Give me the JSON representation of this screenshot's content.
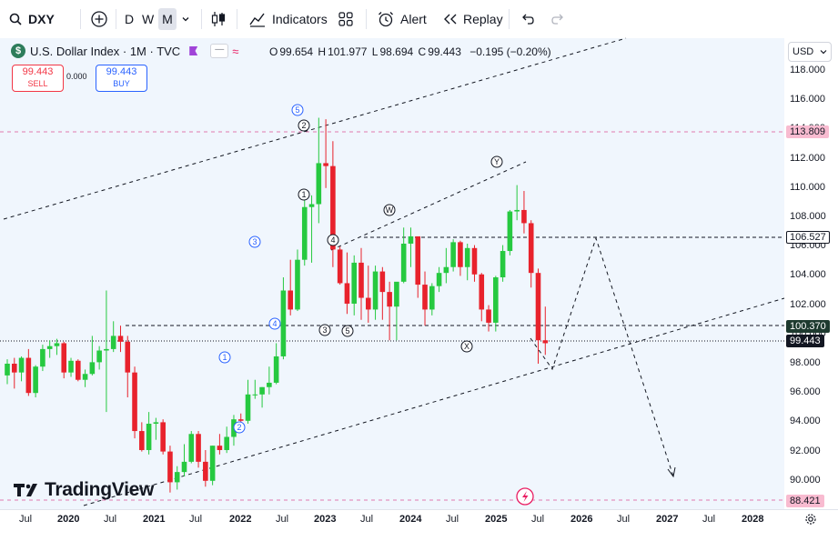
{
  "toolbar": {
    "symbol": "DXY",
    "intervals": [
      "D",
      "W",
      "M"
    ],
    "active_interval": "M",
    "indicators_label": "Indicators",
    "alert_label": "Alert",
    "replay_label": "Replay"
  },
  "legend": {
    "title": "U.S. Dollar Index · 1M · TVC",
    "open_label": "O",
    "open": "99.654",
    "high_label": "H",
    "high": "101.977",
    "low_label": "L",
    "low": "98.694",
    "close_label": "C",
    "close": "99.443",
    "change": "−0.195 (−0.20%)"
  },
  "trade": {
    "sell_price": "99.443",
    "sell_label": "SELL",
    "spread": "0.000",
    "buy_price": "99.443",
    "buy_label": "BUY"
  },
  "currency": "USD",
  "price_ticks": [
    "118.000",
    "116.000",
    "114.000",
    "112.000",
    "110.000",
    "108.000",
    "106.000",
    "104.000",
    "102.000",
    "100.000",
    "98.000",
    "96.000",
    "94.000",
    "92.000",
    "90.000"
  ],
  "price_labels": {
    "high_line": "113.809",
    "resistance": "106.527",
    "support": "100.370",
    "last": "99.443",
    "low_line": "88.421"
  },
  "time_labels": [
    "Jul",
    "2020",
    "Jul",
    "2021",
    "Jul",
    "2022",
    "Jul",
    "2023",
    "Jul",
    "2024",
    "Jul",
    "2025",
    "Jul",
    "2026",
    "Jul",
    "2027",
    "Jul",
    "2028"
  ],
  "wave_labels": [
    "1",
    "2",
    "3",
    "4",
    "5",
    "1",
    "2",
    "3",
    "4",
    "5",
    "W",
    "X",
    "Y"
  ],
  "brand": "TradingView",
  "colors": {
    "up": "#26c940",
    "down": "#e8222c",
    "accent": "#2962ff",
    "pink": "#e91e63"
  },
  "chart_data": {
    "type": "candlestick",
    "title": "U.S. Dollar Index · 1M · TVC",
    "ylim": [
      88,
      119
    ],
    "candles": [
      {
        "o": 97.2,
        "h": 98.3,
        "l": 96.6,
        "c": 98.0
      },
      {
        "o": 98.0,
        "h": 98.4,
        "l": 96.3,
        "c": 97.4
      },
      {
        "o": 97.4,
        "h": 98.5,
        "l": 96.8,
        "c": 98.4
      },
      {
        "o": 98.4,
        "h": 99.0,
        "l": 95.8,
        "c": 96.0
      },
      {
        "o": 96.0,
        "h": 97.9,
        "l": 95.7,
        "c": 97.8
      },
      {
        "o": 97.8,
        "h": 99.3,
        "l": 97.5,
        "c": 99.0
      },
      {
        "o": 99.0,
        "h": 99.6,
        "l": 98.4,
        "c": 99.2
      },
      {
        "o": 99.2,
        "h": 99.7,
        "l": 98.6,
        "c": 99.4
      },
      {
        "o": 99.4,
        "h": 99.5,
        "l": 97.0,
        "c": 97.4
      },
      {
        "o": 97.4,
        "h": 98.4,
        "l": 97.1,
        "c": 98.2
      },
      {
        "o": 98.2,
        "h": 98.3,
        "l": 96.8,
        "c": 96.9
      },
      {
        "o": 96.9,
        "h": 97.6,
        "l": 96.4,
        "c": 97.3
      },
      {
        "o": 97.3,
        "h": 99.9,
        "l": 97.2,
        "c": 98.1
      },
      {
        "o": 98.1,
        "h": 99.2,
        "l": 97.6,
        "c": 98.9
      },
      {
        "o": 98.9,
        "h": 103.0,
        "l": 94.7,
        "c": 99.0
      },
      {
        "o": 99.0,
        "h": 100.9,
        "l": 98.8,
        "c": 99.9
      },
      {
        "o": 99.9,
        "h": 100.6,
        "l": 98.8,
        "c": 99.5
      },
      {
        "o": 99.5,
        "h": 99.9,
        "l": 95.7,
        "c": 97.4
      },
      {
        "o": 97.4,
        "h": 97.8,
        "l": 92.9,
        "c": 93.4
      },
      {
        "o": 93.4,
        "h": 94.0,
        "l": 92.0,
        "c": 92.1
      },
      {
        "o": 92.1,
        "h": 94.7,
        "l": 91.8,
        "c": 93.9
      },
      {
        "o": 93.9,
        "h": 94.3,
        "l": 92.8,
        "c": 94.0
      },
      {
        "o": 94.0,
        "h": 94.2,
        "l": 91.8,
        "c": 92.0
      },
      {
        "o": 92.0,
        "h": 92.4,
        "l": 89.2,
        "c": 89.9
      },
      {
        "o": 89.9,
        "h": 91.0,
        "l": 89.4,
        "c": 90.6
      },
      {
        "o": 90.6,
        "h": 92.5,
        "l": 90.3,
        "c": 91.3
      },
      {
        "o": 91.3,
        "h": 93.4,
        "l": 91.2,
        "c": 93.2
      },
      {
        "o": 93.2,
        "h": 93.4,
        "l": 90.9,
        "c": 91.3
      },
      {
        "o": 91.3,
        "h": 92.1,
        "l": 89.6,
        "c": 90.0
      },
      {
        "o": 90.0,
        "h": 92.4,
        "l": 89.7,
        "c": 92.4
      },
      {
        "o": 92.4,
        "h": 93.2,
        "l": 91.8,
        "c": 92.1
      },
      {
        "o": 92.1,
        "h": 93.7,
        "l": 91.9,
        "c": 93.0
      },
      {
        "o": 93.0,
        "h": 94.5,
        "l": 92.4,
        "c": 94.2
      },
      {
        "o": 94.2,
        "h": 94.6,
        "l": 93.3,
        "c": 94.1
      },
      {
        "o": 94.1,
        "h": 96.9,
        "l": 93.9,
        "c": 95.9
      },
      {
        "o": 95.9,
        "h": 96.9,
        "l": 95.6,
        "c": 95.9
      },
      {
        "o": 95.9,
        "h": 96.4,
        "l": 95.0,
        "c": 96.4
      },
      {
        "o": 96.4,
        "h": 97.8,
        "l": 95.9,
        "c": 96.7
      },
      {
        "o": 96.7,
        "h": 99.4,
        "l": 96.6,
        "c": 98.5
      },
      {
        "o": 98.5,
        "h": 103.9,
        "l": 98.3,
        "c": 103.0
      },
      {
        "o": 103.0,
        "h": 105.1,
        "l": 101.3,
        "c": 101.7
      },
      {
        "o": 101.7,
        "h": 105.8,
        "l": 101.6,
        "c": 105.1
      },
      {
        "o": 105.1,
        "h": 109.3,
        "l": 104.7,
        "c": 108.7
      },
      {
        "o": 108.7,
        "h": 109.5,
        "l": 104.9,
        "c": 108.9
      },
      {
        "o": 108.9,
        "h": 114.8,
        "l": 107.6,
        "c": 111.7
      },
      {
        "o": 111.7,
        "h": 114.7,
        "l": 110.0,
        "c": 111.5
      },
      {
        "o": 111.5,
        "h": 113.2,
        "l": 104.6,
        "c": 105.8
      },
      {
        "o": 105.8,
        "h": 106.0,
        "l": 103.4,
        "c": 103.5
      },
      {
        "o": 103.5,
        "h": 105.6,
        "l": 101.4,
        "c": 102.1
      },
      {
        "o": 102.1,
        "h": 105.4,
        "l": 101.3,
        "c": 104.9
      },
      {
        "o": 104.9,
        "h": 105.9,
        "l": 101.0,
        "c": 102.5
      },
      {
        "o": 102.5,
        "h": 104.7,
        "l": 100.8,
        "c": 101.7
      },
      {
        "o": 101.7,
        "h": 104.7,
        "l": 101.0,
        "c": 104.3
      },
      {
        "o": 104.3,
        "h": 104.6,
        "l": 101.0,
        "c": 102.9
      },
      {
        "o": 102.9,
        "h": 103.6,
        "l": 99.6,
        "c": 101.9
      },
      {
        "o": 101.9,
        "h": 103.4,
        "l": 99.6,
        "c": 103.6
      },
      {
        "o": 103.6,
        "h": 107.3,
        "l": 103.5,
        "c": 106.2
      },
      {
        "o": 106.2,
        "h": 107.3,
        "l": 104.6,
        "c": 106.7
      },
      {
        "o": 106.7,
        "h": 106.5,
        "l": 102.5,
        "c": 103.4
      },
      {
        "o": 103.4,
        "h": 104.3,
        "l": 100.6,
        "c": 101.7
      },
      {
        "o": 101.7,
        "h": 103.5,
        "l": 101.3,
        "c": 103.3
      },
      {
        "o": 103.3,
        "h": 104.6,
        "l": 102.9,
        "c": 104.2
      },
      {
        "o": 104.2,
        "h": 105.9,
        "l": 103.5,
        "c": 104.6
      },
      {
        "o": 104.6,
        "h": 106.5,
        "l": 104.3,
        "c": 106.3
      },
      {
        "o": 106.3,
        "h": 106.4,
        "l": 104.0,
        "c": 104.6
      },
      {
        "o": 104.6,
        "h": 106.2,
        "l": 103.7,
        "c": 105.9
      },
      {
        "o": 105.9,
        "h": 106.1,
        "l": 103.6,
        "c": 104.1
      },
      {
        "o": 104.1,
        "h": 104.2,
        "l": 100.9,
        "c": 101.7
      },
      {
        "o": 101.7,
        "h": 102.0,
        "l": 100.2,
        "c": 100.8
      },
      {
        "o": 100.8,
        "h": 104.0,
        "l": 100.2,
        "c": 103.9
      },
      {
        "o": 103.9,
        "h": 106.1,
        "l": 103.6,
        "c": 105.7
      },
      {
        "o": 105.7,
        "h": 108.5,
        "l": 105.4,
        "c": 108.4
      },
      {
        "o": 108.4,
        "h": 110.2,
        "l": 107.8,
        "c": 108.5
      },
      {
        "o": 108.5,
        "h": 109.8,
        "l": 106.9,
        "c": 107.6
      },
      {
        "o": 107.6,
        "h": 107.8,
        "l": 103.2,
        "c": 104.2
      },
      {
        "o": 104.2,
        "h": 104.5,
        "l": 98.0,
        "c": 99.6
      },
      {
        "o": 99.6,
        "h": 101.9,
        "l": 98.6,
        "c": 99.4
      }
    ]
  }
}
